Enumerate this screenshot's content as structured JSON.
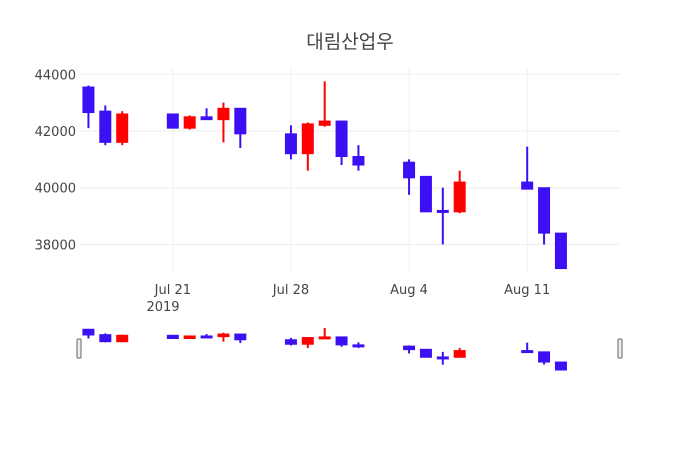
{
  "chart_data": {
    "type": "candlestick",
    "title": "대림산업우",
    "increasing_color": "#ff0000",
    "decreasing_color": "#3c0ff5",
    "grid": true,
    "ylim": [
      37100,
      44150
    ],
    "xlim": [
      "2019-07-15T12:00",
      "2019-08-16T12:00"
    ],
    "y_ticks": [
      38000,
      40000,
      42000,
      44000
    ],
    "y_tick_labels": [
      "38000",
      "40000",
      "42000",
      "44000"
    ],
    "x_ticks": [
      "2019-07-21",
      "2019-07-28",
      "2019-08-04",
      "2019-08-11"
    ],
    "x_tick_labels": [
      "Jul 21",
      "Jul 28",
      "Aug 4",
      "Aug 11"
    ],
    "x_year_label": "2019",
    "candles": [
      {
        "date": "2019-07-16",
        "open": 43550,
        "high": 43600,
        "low": 42100,
        "close": 42650
      },
      {
        "date": "2019-07-17",
        "open": 42700,
        "high": 42900,
        "low": 41500,
        "close": 41600
      },
      {
        "date": "2019-07-18",
        "open": 41600,
        "high": 42700,
        "low": 41500,
        "close": 42600
      },
      {
        "date": "2019-07-21",
        "open": 42600,
        "high": 42600,
        "low": 42100,
        "close": 42100
      },
      {
        "date": "2019-07-22",
        "open": 42100,
        "high": 42550,
        "low": 42050,
        "close": 42500
      },
      {
        "date": "2019-07-23",
        "open": 42500,
        "high": 42800,
        "low": 42400,
        "close": 42400
      },
      {
        "date": "2019-07-24",
        "open": 42400,
        "high": 43000,
        "low": 41600,
        "close": 42800
      },
      {
        "date": "2019-07-25",
        "open": 42800,
        "high": 42800,
        "low": 41400,
        "close": 41900
      },
      {
        "date": "2019-07-28",
        "open": 41900,
        "high": 42200,
        "low": 41000,
        "close": 41200
      },
      {
        "date": "2019-07-29",
        "open": 41200,
        "high": 42300,
        "low": 40600,
        "close": 42250
      },
      {
        "date": "2019-07-30",
        "open": 42200,
        "high": 43750,
        "low": 42150,
        "close": 42350
      },
      {
        "date": "2019-07-31",
        "open": 42350,
        "high": 42350,
        "low": 40800,
        "close": 41100
      },
      {
        "date": "2019-08-01",
        "open": 41100,
        "high": 41500,
        "low": 40600,
        "close": 40800
      },
      {
        "date": "2019-08-04",
        "open": 40900,
        "high": 41000,
        "low": 39750,
        "close": 40350
      },
      {
        "date": "2019-08-05",
        "open": 40400,
        "high": 40400,
        "low": 39150,
        "close": 39150
      },
      {
        "date": "2019-08-06",
        "open": 39200,
        "high": 40000,
        "low": 38000,
        "close": 39150
      },
      {
        "date": "2019-08-07",
        "open": 39150,
        "high": 40600,
        "low": 39100,
        "close": 40200
      },
      {
        "date": "2019-08-11",
        "open": 40200,
        "high": 41450,
        "low": 39950,
        "close": 39950
      },
      {
        "date": "2019-08-12",
        "open": 40000,
        "high": 40000,
        "low": 38000,
        "close": 38400
      },
      {
        "date": "2019-08-13",
        "open": 38400,
        "high": 38400,
        "low": 37150,
        "close": 37150
      }
    ]
  }
}
